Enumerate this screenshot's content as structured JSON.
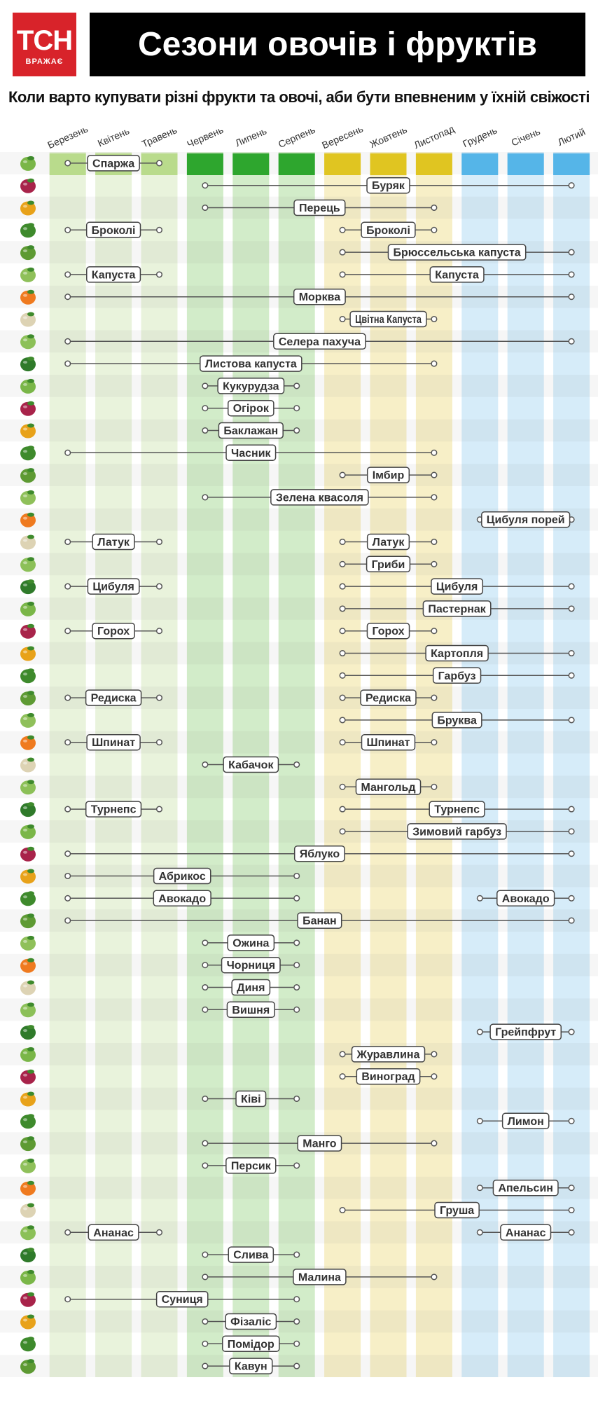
{
  "header": {
    "logo_main": "ТСН",
    "logo_sub": "ВРАЖАЄ",
    "title": "Сезони овочів і фруктів",
    "subtitle": "Коли варто купувати різні фрукти та овочі, аби бути впевненим у їхній свіжості"
  },
  "chart_data": {
    "type": "table",
    "months": [
      "Березень",
      "Квітень",
      "Травень",
      "Червень",
      "Липень",
      "Серпень",
      "Вересень",
      "Жовтень",
      "Листопад",
      "Грудень",
      "Січень",
      "Лютий"
    ],
    "season_colors": {
      "spring": {
        "header": "#b9db8c",
        "column": "#e9f3dc"
      },
      "summer": {
        "header": "#2ea62e",
        "column": "#d2ecc9"
      },
      "autumn": {
        "header": "#e0c521",
        "column": "#f7efc7"
      },
      "winter": {
        "header": "#55b5e8",
        "column": "#d6ecf9"
      }
    },
    "items": [
      {
        "name": "Спаржа",
        "icon": "asparagus-icon",
        "ranges": [
          [
            1,
            3
          ]
        ]
      },
      {
        "name": "Буряк",
        "icon": "beet-icon",
        "ranges": [
          [
            4,
            12
          ]
        ]
      },
      {
        "name": "Перець",
        "icon": "pepper-icon",
        "ranges": [
          [
            4,
            9
          ]
        ]
      },
      {
        "name": "Броколі",
        "icon": "broccoli-icon",
        "ranges": [
          [
            1,
            3
          ],
          [
            7,
            9
          ]
        ]
      },
      {
        "name": "Брюссельська капуста",
        "icon": "brussels-sprouts-icon",
        "ranges": [
          [
            7,
            12
          ]
        ]
      },
      {
        "name": "Капуста",
        "icon": "cabbage-icon",
        "ranges": [
          [
            1,
            3
          ],
          [
            7,
            12
          ]
        ]
      },
      {
        "name": "Морква",
        "icon": "carrot-icon",
        "ranges": [
          [
            1,
            12
          ]
        ]
      },
      {
        "name": "Цвітна Капуста",
        "icon": "cauliflower-icon",
        "ranges": [
          [
            7,
            9
          ]
        ]
      },
      {
        "name": "Селера пахуча",
        "icon": "celery-icon",
        "ranges": [
          [
            1,
            12
          ]
        ]
      },
      {
        "name": "Листова капуста",
        "icon": "kale-icon",
        "ranges": [
          [
            1,
            9
          ]
        ]
      },
      {
        "name": "Кукурудза",
        "icon": "corn-icon",
        "ranges": [
          [
            4,
            6
          ]
        ]
      },
      {
        "name": "Огірок",
        "icon": "cucumber-icon",
        "ranges": [
          [
            4,
            6
          ]
        ]
      },
      {
        "name": "Баклажан",
        "icon": "eggplant-icon",
        "ranges": [
          [
            4,
            6
          ]
        ]
      },
      {
        "name": "Часник",
        "icon": "garlic-icon",
        "ranges": [
          [
            1,
            9
          ]
        ]
      },
      {
        "name": "Імбир",
        "icon": "ginger-icon",
        "ranges": [
          [
            7,
            9
          ]
        ]
      },
      {
        "name": "Зелена квасоля",
        "icon": "green-beans-icon",
        "ranges": [
          [
            4,
            9
          ]
        ]
      },
      {
        "name": "Цибуля порей",
        "icon": "leek-icon",
        "ranges": [
          [
            10,
            12
          ]
        ]
      },
      {
        "name": "Латук",
        "icon": "lettuce-icon",
        "ranges": [
          [
            1,
            3
          ],
          [
            7,
            9
          ]
        ]
      },
      {
        "name": "Гриби",
        "icon": "mushroom-icon",
        "ranges": [
          [
            7,
            9
          ]
        ]
      },
      {
        "name": "Цибуля",
        "icon": "onion-icon",
        "ranges": [
          [
            1,
            3
          ],
          [
            7,
            12
          ]
        ]
      },
      {
        "name": "Пастернак",
        "icon": "parsnip-icon",
        "ranges": [
          [
            7,
            12
          ]
        ]
      },
      {
        "name": "Горох",
        "icon": "peas-icon",
        "ranges": [
          [
            1,
            3
          ],
          [
            7,
            9
          ]
        ]
      },
      {
        "name": "Картопля",
        "icon": "potato-icon",
        "ranges": [
          [
            7,
            12
          ]
        ]
      },
      {
        "name": "Гарбуз",
        "icon": "pumpkin-icon",
        "ranges": [
          [
            7,
            12
          ]
        ]
      },
      {
        "name": "Редиска",
        "icon": "radish-icon",
        "ranges": [
          [
            1,
            3
          ],
          [
            7,
            9
          ]
        ]
      },
      {
        "name": "Бруква",
        "icon": "rutabaga-icon",
        "ranges": [
          [
            7,
            12
          ]
        ]
      },
      {
        "name": "Шпинат",
        "icon": "spinach-icon",
        "ranges": [
          [
            1,
            3
          ],
          [
            7,
            9
          ]
        ]
      },
      {
        "name": "Кабачок",
        "icon": "zucchini-icon",
        "ranges": [
          [
            4,
            6
          ]
        ]
      },
      {
        "name": "Мангольд",
        "icon": "chard-icon",
        "ranges": [
          [
            7,
            9
          ]
        ]
      },
      {
        "name": "Турнепс",
        "icon": "turnip-icon",
        "ranges": [
          [
            1,
            3
          ],
          [
            7,
            12
          ]
        ]
      },
      {
        "name": "Зимовий гарбуз",
        "icon": "winter-squash-icon",
        "ranges": [
          [
            7,
            12
          ]
        ]
      },
      {
        "name": "Яблуко",
        "icon": "apple-icon",
        "ranges": [
          [
            1,
            12
          ]
        ]
      },
      {
        "name": "Абрикос",
        "icon": "apricot-icon",
        "ranges": [
          [
            1,
            6
          ]
        ]
      },
      {
        "name": "Авокадо",
        "icon": "avocado-icon",
        "ranges": [
          [
            1,
            6
          ],
          [
            10,
            12
          ]
        ]
      },
      {
        "name": "Банан",
        "icon": "banana-icon",
        "ranges": [
          [
            1,
            12
          ]
        ]
      },
      {
        "name": "Ожина",
        "icon": "blackberry-icon",
        "ranges": [
          [
            4,
            6
          ]
        ]
      },
      {
        "name": "Чорниця",
        "icon": "blueberry-icon",
        "ranges": [
          [
            4,
            6
          ]
        ]
      },
      {
        "name": "Диня",
        "icon": "melon-icon",
        "ranges": [
          [
            4,
            6
          ]
        ]
      },
      {
        "name": "Вишня",
        "icon": "cherry-icon",
        "ranges": [
          [
            4,
            6
          ]
        ]
      },
      {
        "name": "Грейпфрут",
        "icon": "grapefruit-icon",
        "ranges": [
          [
            10,
            12
          ]
        ]
      },
      {
        "name": "Журавлина",
        "icon": "cranberry-icon",
        "ranges": [
          [
            7,
            9
          ]
        ]
      },
      {
        "name": "Виноград",
        "icon": "grapes-icon",
        "ranges": [
          [
            7,
            9
          ]
        ]
      },
      {
        "name": "Ківі",
        "icon": "kiwi-icon",
        "ranges": [
          [
            4,
            6
          ]
        ]
      },
      {
        "name": "Лимон",
        "icon": "lemon-icon",
        "ranges": [
          [
            10,
            12
          ]
        ]
      },
      {
        "name": "Манго",
        "icon": "mango-icon",
        "ranges": [
          [
            4,
            9
          ]
        ]
      },
      {
        "name": "Персик",
        "icon": "peach-icon",
        "ranges": [
          [
            4,
            6
          ]
        ]
      },
      {
        "name": "Апельсин",
        "icon": "orange-icon",
        "ranges": [
          [
            10,
            12
          ]
        ]
      },
      {
        "name": "Груша",
        "icon": "pear-icon",
        "ranges": [
          [
            7,
            12
          ]
        ]
      },
      {
        "name": "Ананас",
        "icon": "pineapple-icon",
        "ranges": [
          [
            1,
            3
          ],
          [
            10,
            12
          ]
        ]
      },
      {
        "name": "Слива",
        "icon": "plum-icon",
        "ranges": [
          [
            4,
            6
          ]
        ]
      },
      {
        "name": "Малина",
        "icon": "raspberry-icon",
        "ranges": [
          [
            4,
            9
          ]
        ]
      },
      {
        "name": "Суниця",
        "icon": "strawberry-icon",
        "ranges": [
          [
            1,
            6
          ]
        ]
      },
      {
        "name": "Фізаліс",
        "icon": "physalis-icon",
        "ranges": [
          [
            4,
            6
          ]
        ]
      },
      {
        "name": "Помідор",
        "icon": "tomato-icon",
        "ranges": [
          [
            4,
            6
          ]
        ]
      },
      {
        "name": "Кавун",
        "icon": "watermelon-icon",
        "ranges": [
          [
            4,
            6
          ]
        ]
      }
    ]
  }
}
